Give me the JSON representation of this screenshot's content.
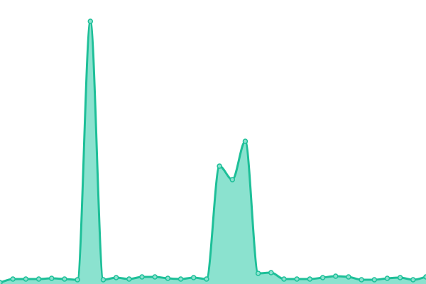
{
  "chart_data": {
    "type": "area",
    "title": "",
    "xlabel": "",
    "ylabel": "",
    "x": [
      0,
      1,
      2,
      3,
      4,
      5,
      6,
      7,
      8,
      9,
      10,
      11,
      12,
      13,
      14,
      15,
      16,
      17,
      18,
      19,
      20,
      21,
      22,
      23,
      24,
      25,
      26,
      27,
      28,
      29,
      30,
      31,
      32,
      33
    ],
    "values": [
      2,
      7,
      7,
      7,
      8,
      7,
      6,
      370,
      6,
      9,
      7,
      10,
      10,
      8,
      7,
      9,
      7,
      166,
      147,
      201,
      15,
      16,
      7,
      7,
      7,
      9,
      11,
      10,
      6,
      6,
      8,
      9,
      6,
      10
    ],
    "ylim": [
      0,
      400
    ],
    "grid": false,
    "axes_visible": false,
    "curve": "smooth",
    "markers": true,
    "colors": {
      "line": "#1dbf98",
      "fill": "#8be2cf",
      "marker_fill": "#8be2cf",
      "marker_stroke": "#1dbf98"
    }
  }
}
